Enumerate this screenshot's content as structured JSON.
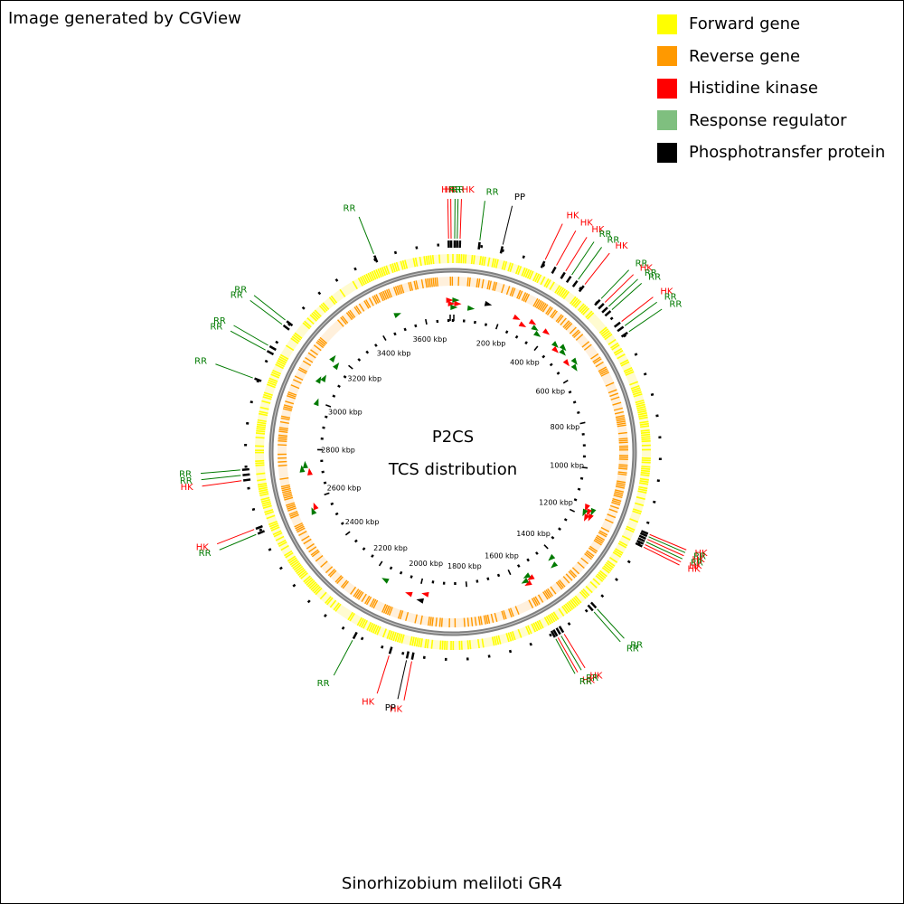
{
  "credit": "Image generated by CGView",
  "organism": "Sinorhizobium meliloti GR4",
  "center": {
    "title": "P2CS",
    "subtitle": "TCS distribution"
  },
  "legend": [
    {
      "label": "Forward gene",
      "color": "#ffff00"
    },
    {
      "label": "Reverse gene",
      "color": "#ff9900"
    },
    {
      "label": "Histidine kinase",
      "color": "#ff0000"
    },
    {
      "label": "Response regulator",
      "color": "#7fbf7f"
    },
    {
      "label": "Phosphotransfer protein",
      "color": "#000000"
    }
  ],
  "colors": {
    "forward": "#ffff00",
    "reverse": "#ff9900",
    "hk": "#ff0000",
    "rr": "#007a00",
    "pp": "#000000",
    "backbone": "#808080"
  },
  "map": {
    "genome_length_kbp": 3720,
    "ticks": [
      {
        "pos": 200,
        "label": "200 kbp"
      },
      {
        "pos": 400,
        "label": "400 kbp"
      },
      {
        "pos": 600,
        "label": "600 kbp"
      },
      {
        "pos": 800,
        "label": "800 kbp"
      },
      {
        "pos": 1000,
        "label": "1000 kbp"
      },
      {
        "pos": 1200,
        "label": "1200 kbp"
      },
      {
        "pos": 1400,
        "label": "1400 kbp"
      },
      {
        "pos": 1600,
        "label": "1600 kbp"
      },
      {
        "pos": 1800,
        "label": "1800 kbp"
      },
      {
        "pos": 2000,
        "label": "2000 kbp"
      },
      {
        "pos": 2200,
        "label": "2200 kbp"
      },
      {
        "pos": 2400,
        "label": "2400 kbp"
      },
      {
        "pos": 2600,
        "label": "2600 kbp"
      },
      {
        "pos": 2800,
        "label": "2800 kbp"
      },
      {
        "pos": 3000,
        "label": "3000 kbp"
      },
      {
        "pos": 3200,
        "label": "3200 kbp"
      },
      {
        "pos": 3400,
        "label": "3400 kbp"
      },
      {
        "pos": 3600,
        "label": "3600 kbp"
      }
    ],
    "features": [
      {
        "type": "HK",
        "label": "HK",
        "pos": 3708
      },
      {
        "type": "HK",
        "label": "HK",
        "pos": 3715
      },
      {
        "type": "RR",
        "label": "RR",
        "pos": 5
      },
      {
        "type": "RR",
        "label": "RR",
        "pos": 12
      },
      {
        "type": "HK",
        "label": "HK",
        "pos": 20
      },
      {
        "type": "RR",
        "label": "RR",
        "pos": 75
      },
      {
        "type": "PP",
        "label": "PP",
        "pos": 140
      },
      {
        "type": "HK",
        "label": "HK",
        "pos": 265
      },
      {
        "type": "HK",
        "label": "HK",
        "pos": 300
      },
      {
        "type": "HK",
        "label": "HK",
        "pos": 330
      },
      {
        "type": "RR",
        "label": "RR",
        "pos": 350
      },
      {
        "type": "RR",
        "label": "RR",
        "pos": 372
      },
      {
        "type": "HK",
        "label": "HK",
        "pos": 395
      },
      {
        "type": "RR",
        "label": "RR",
        "pos": 455
      },
      {
        "type": "HK",
        "label": "HK",
        "pos": 470
      },
      {
        "type": "RR",
        "label": "RR",
        "pos": 485
      },
      {
        "type": "RR",
        "label": "RR",
        "pos": 498
      },
      {
        "type": "HK",
        "label": "HK",
        "pos": 540
      },
      {
        "type": "RR",
        "label": "RR",
        "pos": 555
      },
      {
        "type": "RR",
        "label": "RR",
        "pos": 575
      },
      {
        "type": "HK",
        "label": "HK",
        "pos": 1165
      },
      {
        "type": "RR",
        "label": "RR",
        "pos": 1172
      },
      {
        "type": "HK",
        "label": "HK",
        "pos": 1180
      },
      {
        "type": "RR",
        "label": "RR",
        "pos": 1188
      },
      {
        "type": "HK",
        "label": "HK",
        "pos": 1196
      },
      {
        "type": "HK",
        "label": "HK",
        "pos": 1204
      },
      {
        "type": "RR",
        "label": "RR",
        "pos": 1420
      },
      {
        "type": "RR",
        "label": "RR",
        "pos": 1432
      },
      {
        "type": "HK",
        "label": "HK",
        "pos": 1535
      },
      {
        "type": "RR",
        "label": "RR",
        "pos": 1545
      },
      {
        "type": "HK",
        "label": "HK",
        "pos": 1555
      },
      {
        "type": "RR",
        "label": "RR",
        "pos": 1562
      },
      {
        "type": "HK",
        "label": "HK",
        "pos": 1975
      },
      {
        "type": "PP",
        "label": "PP",
        "pos": 1990
      },
      {
        "type": "HK",
        "label": "HK",
        "pos": 2040
      },
      {
        "type": "RR",
        "label": "RR",
        "pos": 2150
      },
      {
        "type": "RR",
        "label": "RR",
        "pos": 2555
      },
      {
        "type": "HK",
        "label": "HK",
        "pos": 2570
      },
      {
        "type": "HK",
        "label": "HK",
        "pos": 2710
      },
      {
        "type": "RR",
        "label": "RR",
        "pos": 2725
      },
      {
        "type": "RR",
        "label": "RR",
        "pos": 2740
      },
      {
        "type": "RR",
        "label": "RR",
        "pos": 3000
      },
      {
        "type": "RR",
        "label": "RR",
        "pos": 3085
      },
      {
        "type": "RR",
        "label": "RR",
        "pos": 3100
      },
      {
        "type": "RR",
        "label": "RR",
        "pos": 3170
      },
      {
        "type": "RR",
        "label": "RR",
        "pos": 3185
      },
      {
        "type": "RR",
        "label": "RR",
        "pos": 3495
      }
    ]
  }
}
